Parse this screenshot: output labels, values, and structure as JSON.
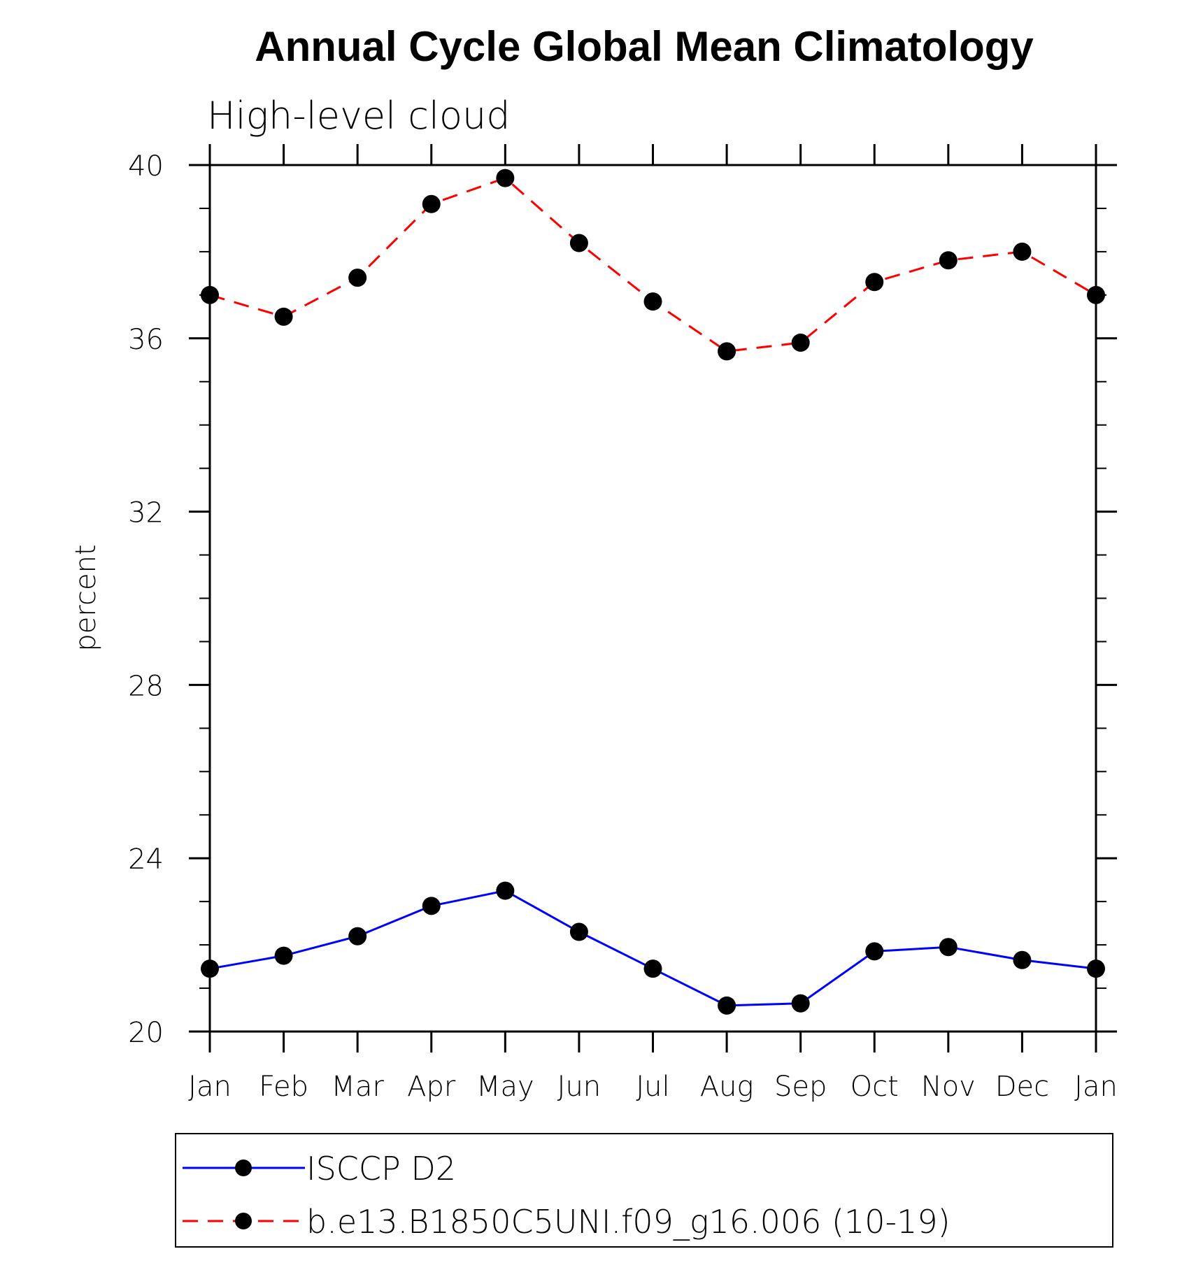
{
  "chart_data": {
    "type": "line",
    "title": "Annual Cycle Global Mean Climatology",
    "subtitle": "High-level cloud",
    "ylabel": "percent",
    "xlabel": "",
    "ylim": [
      20,
      40
    ],
    "yticks": [
      20,
      24,
      28,
      32,
      36,
      40
    ],
    "categories": [
      "Jan",
      "Feb",
      "Mar",
      "Apr",
      "May",
      "Jun",
      "Jul",
      "Aug",
      "Sep",
      "Oct",
      "Nov",
      "Dec",
      "Jan"
    ],
    "grid": false,
    "legend_position": "bottom",
    "series": [
      {
        "name": "ISCCP D2",
        "color": "#0000ff",
        "style": "solid",
        "marker": "filled-circle",
        "values": [
          21.45,
          21.75,
          22.2,
          22.9,
          23.25,
          22.3,
          21.45,
          20.6,
          20.65,
          21.85,
          21.95,
          21.65,
          21.45
        ]
      },
      {
        "name": "b.e13.B1850C5UNI.f09_g16.006 (10-19)",
        "color": "#ff0000",
        "style": "dashed",
        "marker": "filled-circle",
        "values": [
          37.0,
          36.5,
          37.4,
          39.1,
          39.7,
          38.2,
          36.85,
          35.7,
          35.9,
          37.3,
          37.8,
          38.0,
          37.0
        ]
      }
    ]
  }
}
